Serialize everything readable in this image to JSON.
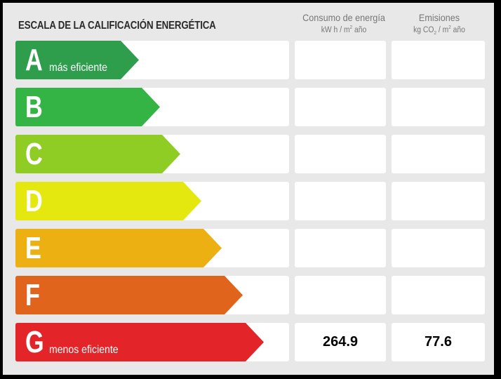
{
  "title": "ESCALA DE LA CALIFICACIÓN ENERGÉTICA",
  "columns": {
    "consumo": {
      "label": "Consumo de energía",
      "unit_pre": "kW h / m",
      "unit_sup": "2",
      "unit_post": " año"
    },
    "emisiones": {
      "label": "Emisiones",
      "unit_pre": "kg CO",
      "unit_sub": "2",
      "unit_mid": " / m",
      "unit_sup": "2",
      "unit_post": " año"
    }
  },
  "rating_scale": [
    {
      "letter": "A",
      "sublabel": "más eficiente",
      "color": "#2e9e4c",
      "arrow_width": 176,
      "consumo": "",
      "emisiones": ""
    },
    {
      "letter": "B",
      "sublabel": "",
      "color": "#34b444",
      "arrow_width": 206,
      "consumo": "",
      "emisiones": ""
    },
    {
      "letter": "C",
      "sublabel": "",
      "color": "#8fcc24",
      "arrow_width": 235,
      "consumo": "",
      "emisiones": ""
    },
    {
      "letter": "D",
      "sublabel": "",
      "color": "#e4e80f",
      "arrow_width": 265,
      "consumo": "",
      "emisiones": ""
    },
    {
      "letter": "E",
      "sublabel": "",
      "color": "#edb012",
      "arrow_width": 294,
      "consumo": "",
      "emisiones": ""
    },
    {
      "letter": "F",
      "sublabel": "",
      "color": "#e0641c",
      "arrow_width": 324,
      "consumo": "",
      "emisiones": ""
    },
    {
      "letter": "G",
      "sublabel": "menos eficiente",
      "color": "#e3252a",
      "arrow_width": 354,
      "consumo": "264.9",
      "emisiones": "77.6"
    }
  ]
}
